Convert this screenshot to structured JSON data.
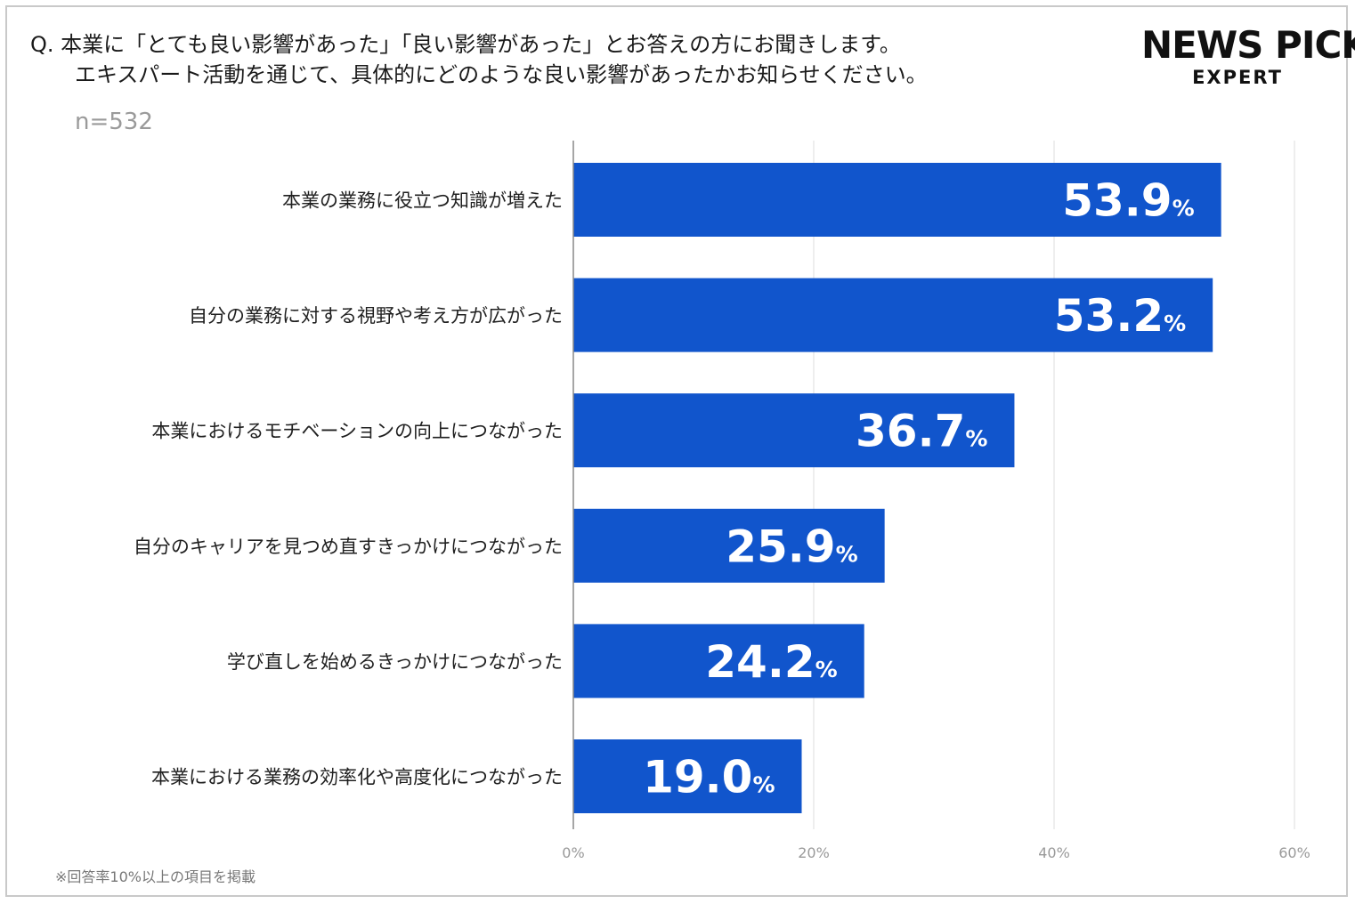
{
  "question": {
    "line1": "Q.  本業に「とても良い影響があった」「良い影響があった」とお答えの方にお聞きします。",
    "line2": "エキスパート活動を通じて、具体的にどのような良い影響があったかお知らせください。"
  },
  "sample_size": "n=532",
  "logo": {
    "top": "NEWS PICKS",
    "bottom": "EXPERT"
  },
  "footnote": "※回答率10%以上の項目を掲載",
  "colors": {
    "bar": "#1155CC",
    "grid": "#dddddd",
    "axis": "#888888"
  },
  "chart_data": {
    "type": "bar",
    "orientation": "horizontal",
    "categories": [
      "本業の業務に役立つ知識が増えた",
      "自分の業務に対する視野や考え方が広がった",
      "本業におけるモチベーションの向上につながった",
      "自分のキャリアを見つめ直すきっかけにつながった",
      "学び直しを始めるきっかけにつながった",
      "本業における業務の効率化や高度化につながった"
    ],
    "values": [
      53.9,
      53.2,
      36.7,
      25.9,
      24.2,
      19.0
    ],
    "value_labels": [
      "53.9",
      "53.2",
      "36.7",
      "25.9",
      "24.2",
      "19.0"
    ],
    "unit": "%",
    "xlim": [
      0,
      60
    ],
    "ticks": [
      0,
      20,
      40,
      60
    ],
    "tick_labels": [
      "0%",
      "20%",
      "40%",
      "60%"
    ],
    "grid": true
  }
}
